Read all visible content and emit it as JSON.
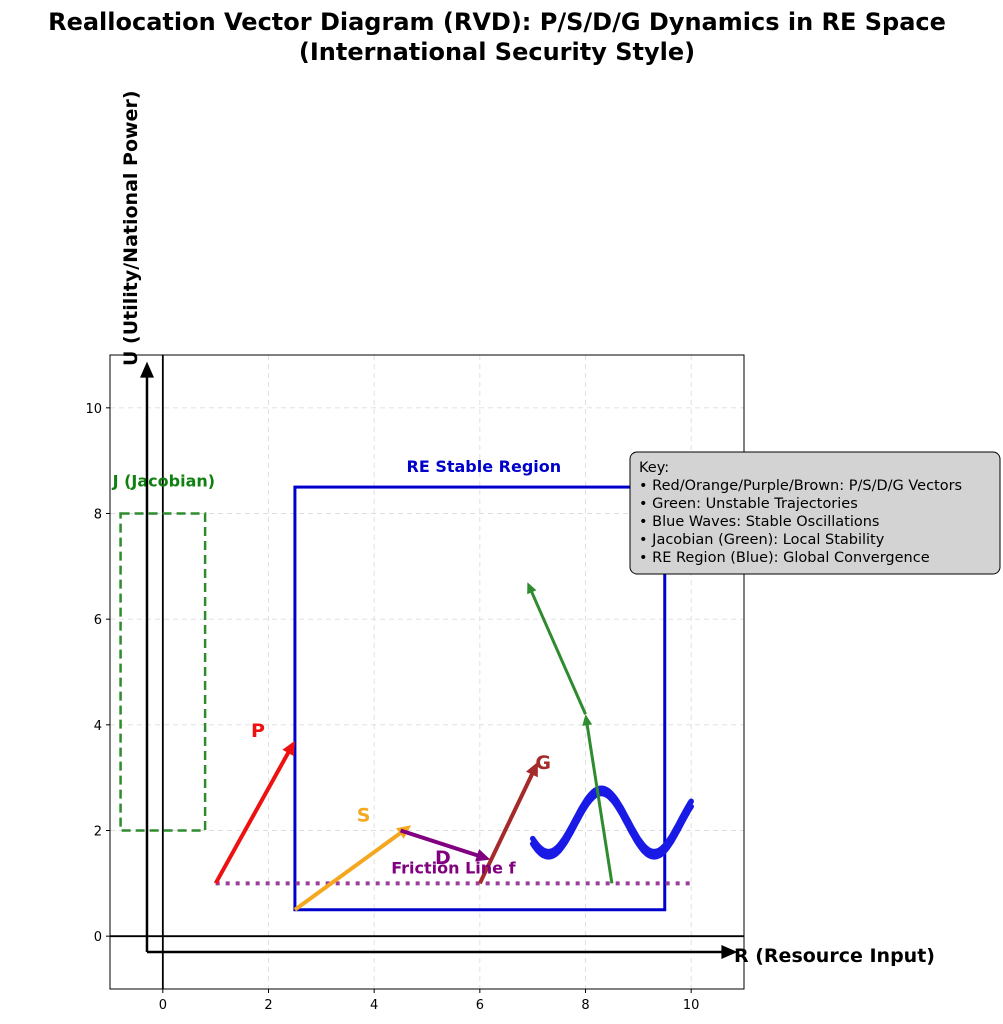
{
  "chart_data": {
    "type": "line",
    "title": "Reallocation Vector Diagram (RVD): P/S/D/G Dynamics in RE Space",
    "subtitle": "(International Security Style)",
    "xlabel": "R (Resource Input)",
    "ylabel": "U (Utility/National Power)",
    "xlim": [
      -1,
      11
    ],
    "ylim": [
      -1,
      11
    ],
    "xticks": [
      0,
      2,
      4,
      6,
      8,
      10
    ],
    "yticks": [
      0,
      2,
      4,
      6,
      8,
      10
    ],
    "grid": true,
    "vectors": [
      {
        "label": "P",
        "color": "#ee1111",
        "from": [
          1,
          1
        ],
        "to": [
          2.5,
          3.7
        ],
        "label_at": [
          1.8,
          3.9
        ]
      },
      {
        "label": "S",
        "color": "#f5a81f",
        "from": [
          2.5,
          0.5
        ],
        "to": [
          4.7,
          2.1
        ],
        "label_at": [
          3.8,
          2.3
        ]
      },
      {
        "label": "D",
        "color": "#800080",
        "from": [
          4.5,
          2.0
        ],
        "to": [
          6.2,
          1.45
        ],
        "label_at": [
          5.3,
          1.5
        ]
      },
      {
        "label": "G",
        "color": "#a52a2a",
        "from": [
          6.0,
          1.0
        ],
        "to": [
          7.1,
          3.3
        ],
        "label_at": [
          7.2,
          3.3
        ]
      }
    ],
    "unstable_trajectory": {
      "color": "#2e8b2e",
      "points": [
        [
          8.5,
          1.0
        ],
        [
          8.0,
          4.2
        ],
        [
          6.9,
          6.7
        ]
      ]
    },
    "stable_oscillations": {
      "color": "#1a1ae6",
      "x_range": [
        7.0,
        10.0
      ],
      "curves": [
        {
          "center": 2.2,
          "amplitude": 0.6,
          "period": 2.0
        },
        {
          "center": 2.1,
          "amplitude": 0.6,
          "period": 2.0
        }
      ]
    },
    "friction_line": {
      "label": "Friction Line f",
      "y": 1.0,
      "x_range": [
        1.0,
        10.0
      ],
      "color": "#9b3d9b"
    },
    "re_region": {
      "label": "RE Stable Region",
      "x_range": [
        2.5,
        9.5
      ],
      "y_range": [
        0.5,
        8.5
      ],
      "color": "#0000cc"
    },
    "jacobian_box": {
      "label": "J (Jacobian)",
      "x_range": [
        -0.8,
        0.8
      ],
      "y_range": [
        2.0,
        8.0
      ],
      "color": "#2e8b2e"
    },
    "axis_arrows": {
      "origin": [
        -0.3,
        -0.3
      ],
      "x_end": [
        10.8,
        -0.3
      ],
      "y_end": [
        -0.3,
        10.8
      ]
    },
    "key": {
      "title": "Key:",
      "lines": [
        "• Red/Orange/Purple/Brown: P/S/D/G Vectors",
        "• Green: Unstable Trajectories",
        "• Blue Waves: Stable Oscillations",
        "• Jacobian (Green): Local Stability",
        "• RE Region (Blue): Global Convergence"
      ]
    }
  }
}
